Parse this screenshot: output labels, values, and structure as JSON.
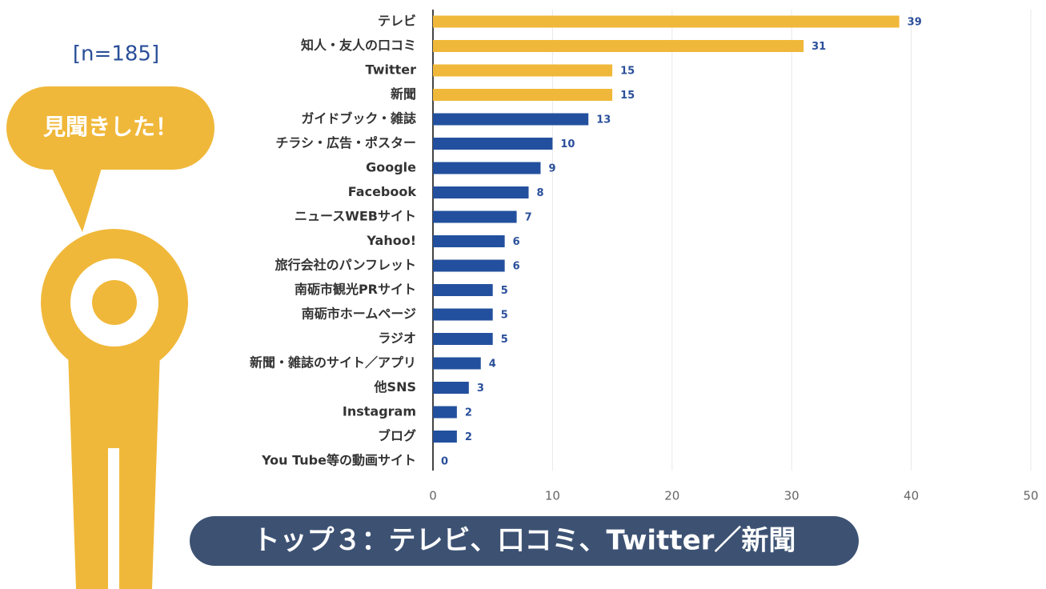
{
  "chart_data": {
    "type": "bar",
    "orientation": "horizontal",
    "categories": [
      "テレビ",
      "知人・友人の口コミ",
      "Twitter",
      "新聞",
      "ガイドブック・雑誌",
      "チラシ・広告・ポスター",
      "Google",
      "Facebook",
      "ニュースWEBサイト",
      "Yahoo!",
      "旅行会社のパンフレット",
      "南砺市観光PRサイト",
      "南砺市ホームページ",
      "ラジオ",
      "新聞・雑誌のサイト／アプリ",
      "他SNS",
      "Instagram",
      "ブログ",
      "You Tube等の動画サイト"
    ],
    "values": [
      39,
      31,
      15,
      15,
      13,
      10,
      9,
      8,
      7,
      6,
      6,
      5,
      5,
      5,
      4,
      3,
      2,
      2,
      0
    ],
    "colors": [
      "#f0b83a",
      "#f0b83a",
      "#f0b83a",
      "#f0b83a",
      "#23509e",
      "#23509e",
      "#23509e",
      "#23509e",
      "#23509e",
      "#23509e",
      "#23509e",
      "#23509e",
      "#23509e",
      "#23509e",
      "#23509e",
      "#23509e",
      "#23509e",
      "#23509e",
      "#23509e"
    ],
    "xlim": [
      0,
      50
    ],
    "xticks": [
      0,
      10,
      20,
      30,
      40,
      50
    ],
    "grid": true,
    "annotations": {
      "sample": "[n=185]",
      "bubble": "見聞きした！",
      "summary": "トップ３：テレビ、口コミ、Twitter／新聞"
    }
  }
}
